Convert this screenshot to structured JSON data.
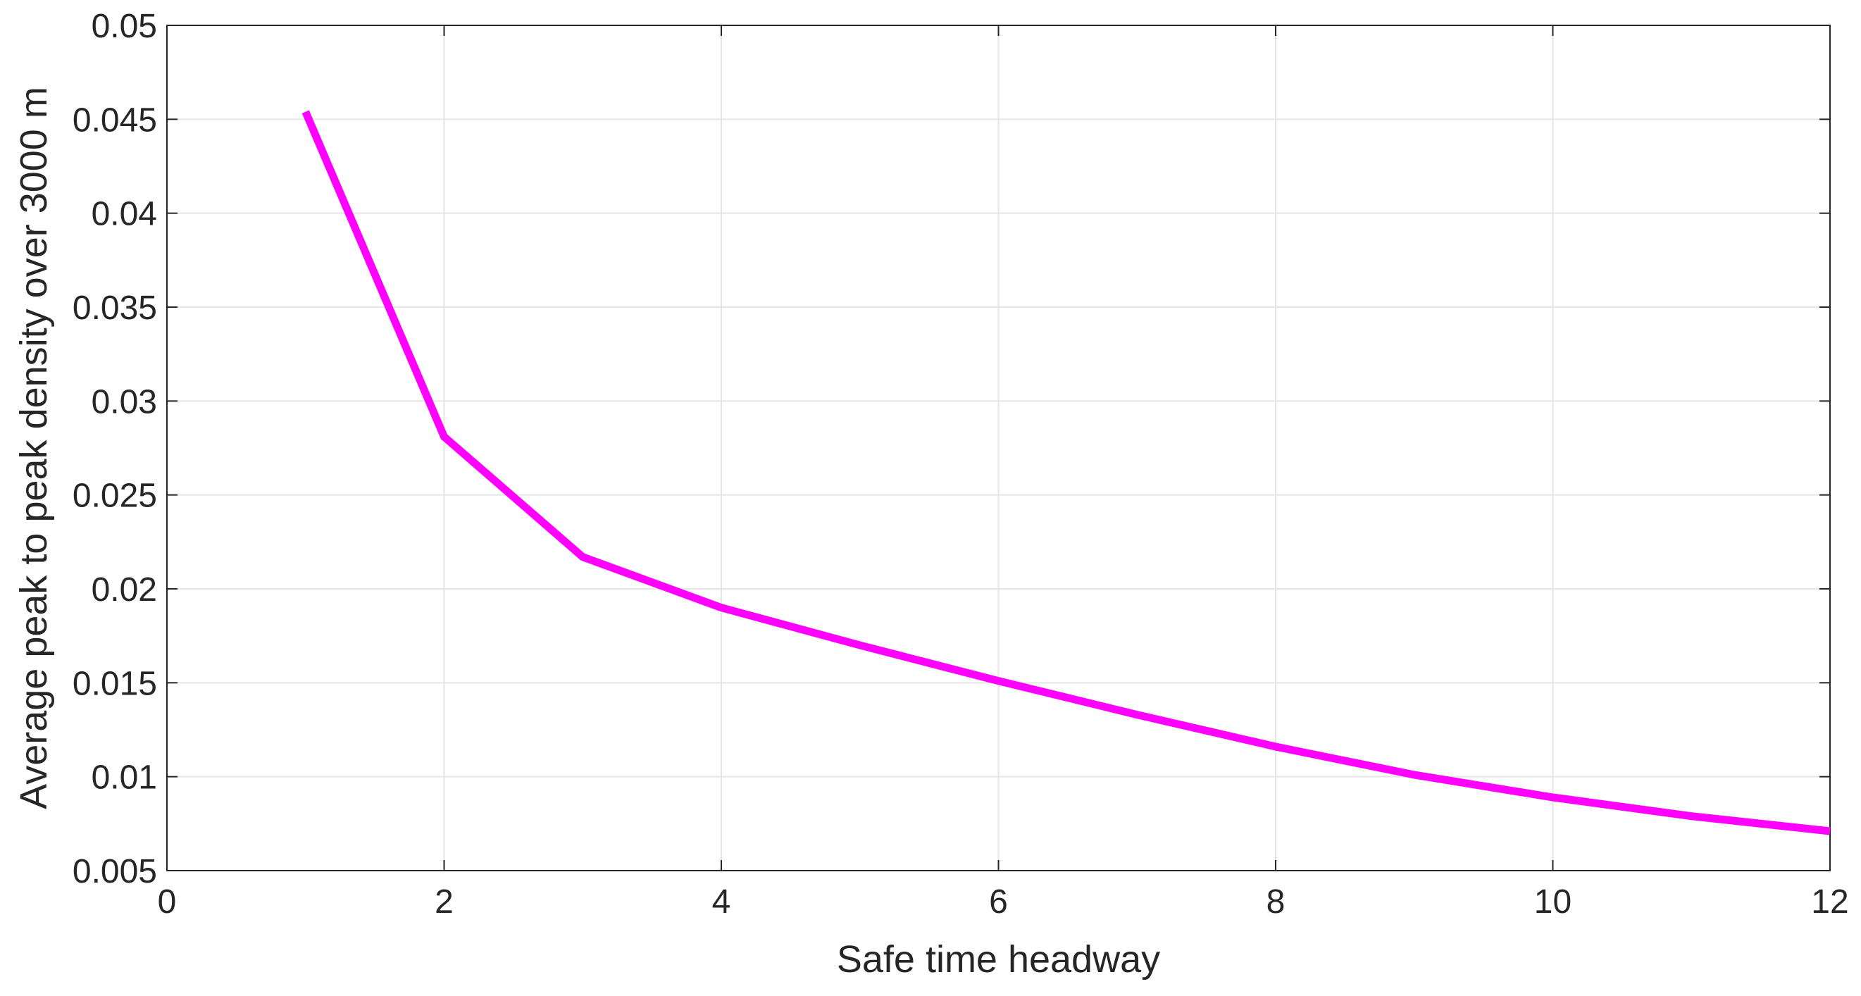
{
  "chart_data": {
    "type": "line",
    "title": "",
    "xlabel": "Safe time headway",
    "ylabel": "Average peak to peak density over 3000 m",
    "xlim": [
      0,
      12
    ],
    "ylim": [
      0.005,
      0.05
    ],
    "x_ticks": [
      0,
      2,
      4,
      6,
      8,
      10,
      12
    ],
    "x_tick_labels": [
      "0",
      "2",
      "4",
      "6",
      "8",
      "10",
      "12"
    ],
    "y_ticks": [
      0.005,
      0.01,
      0.015,
      0.02,
      0.025,
      0.03,
      0.035,
      0.04,
      0.045,
      0.05
    ],
    "y_tick_labels": [
      "0.005",
      "0.01",
      "0.015",
      "0.02",
      "0.025",
      "0.03",
      "0.035",
      "0.04",
      "0.045",
      "0.05"
    ],
    "grid": true,
    "legend": "none",
    "series": [
      {
        "color": "#ff00ff",
        "x": [
          1,
          2,
          3,
          4,
          5,
          6,
          7,
          8,
          9,
          10,
          11,
          12
        ],
        "y": [
          0.0454,
          0.0281,
          0.0217,
          0.019,
          0.017,
          0.0151,
          0.0133,
          0.0116,
          0.0101,
          0.0089,
          0.0079,
          0.0071
        ]
      }
    ]
  }
}
